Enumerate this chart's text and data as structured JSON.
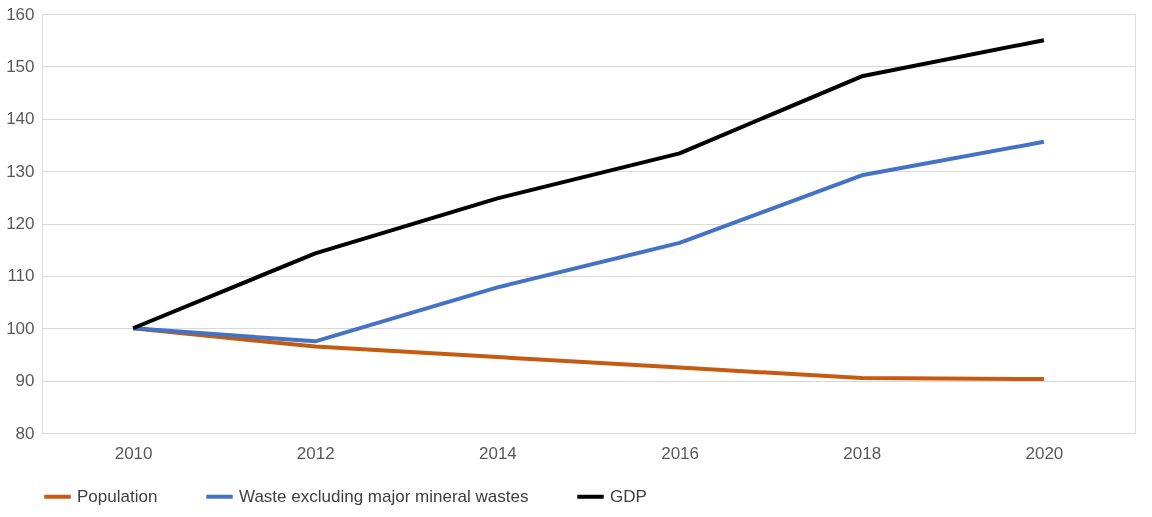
{
  "chart_data": {
    "type": "line",
    "categories": [
      "2010",
      "2012",
      "2014",
      "2016",
      "2018",
      "2020"
    ],
    "series": [
      {
        "name": "Population",
        "color": "#c55a11",
        "values": [
          100,
          96.5,
          94.5,
          92.5,
          90.5,
          90.3
        ]
      },
      {
        "name": "Waste excluding major mineral wastes",
        "color": "#4472c4",
        "values": [
          100,
          97.5,
          107.8,
          116.3,
          129.2,
          135.6
        ]
      },
      {
        "name": "GDP",
        "color": "#000000",
        "values": [
          100,
          114.3,
          124.8,
          133.4,
          148.1,
          155.0
        ]
      }
    ],
    "ylim": [
      80,
      160
    ],
    "yticks": [
      80,
      90,
      100,
      110,
      120,
      130,
      140,
      150,
      160
    ],
    "grid": "y",
    "legend": "bottom",
    "marker": "none",
    "line_style": "solid"
  }
}
